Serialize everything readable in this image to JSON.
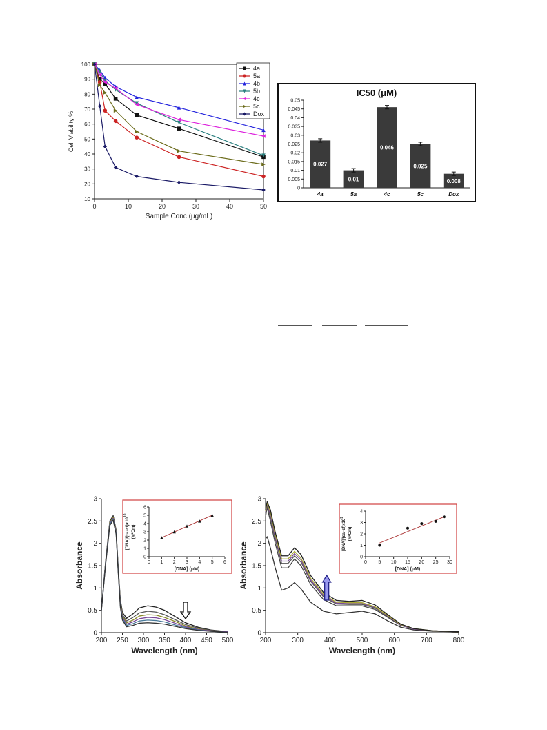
{
  "chart_data": [
    {
      "type": "line",
      "xlabel": "Sample Conc (μg/mL)",
      "ylabel": "Cell Viability %",
      "xlim": [
        0,
        50
      ],
      "ylim": [
        10,
        100
      ],
      "x_ticks": [
        "0",
        "10",
        "20",
        "30",
        "40",
        "50"
      ],
      "y_ticks": [
        "10",
        "20",
        "30",
        "40",
        "50",
        "60",
        "70",
        "80",
        "90",
        "100"
      ],
      "legend_position": "top-right",
      "x": [
        0,
        1.56,
        3.125,
        6.25,
        12.5,
        25,
        50
      ],
      "series": [
        {
          "name": "4a",
          "color": "#111111",
          "marker": "square",
          "values": [
            100,
            90,
            87,
            77,
            66,
            57,
            38
          ]
        },
        {
          "name": "5a",
          "color": "#cc2222",
          "marker": "circle",
          "values": [
            100,
            88,
            69,
            62,
            51,
            38,
            25
          ]
        },
        {
          "name": "4b",
          "color": "#2222dd",
          "marker": "triangle-up",
          "values": [
            100,
            96,
            91,
            85,
            78,
            71,
            56
          ]
        },
        {
          "name": "5b",
          "color": "#2a7f7f",
          "marker": "triangle-down",
          "values": [
            100,
            95,
            89,
            83,
            74,
            61,
            39
          ]
        },
        {
          "name": "4c",
          "color": "#dd22dd",
          "marker": "triangle-left",
          "values": [
            100,
            93,
            88,
            84,
            73,
            63,
            52
          ]
        },
        {
          "name": "5c",
          "color": "#6b6b1a",
          "marker": "triangle-right",
          "values": [
            100,
            86,
            81,
            69,
            55,
            42,
            33
          ]
        },
        {
          "name": "Dox",
          "color": "#1a1a66",
          "marker": "diamond",
          "values": [
            100,
            72,
            45,
            31,
            25,
            21,
            16
          ]
        }
      ]
    },
    {
      "type": "bar",
      "title": "IC50 (μM)",
      "categories": [
        "4a",
        "5a",
        "4c",
        "5c",
        "Dox"
      ],
      "values": [
        0.027,
        0.01,
        0.046,
        0.025,
        0.008
      ],
      "value_labels": [
        "0.027",
        "0.01",
        "0.046",
        "0.025",
        "0.008"
      ],
      "errors": [
        0.001,
        0.001,
        0.001,
        0.001,
        0.001
      ],
      "ylim": [
        0,
        0.05
      ],
      "y_ticks": [
        "0",
        "0.005",
        "0.01",
        "0.015",
        "0.02",
        "0.025",
        "0.03",
        "0.035",
        "0.04",
        "0.045",
        "0.05"
      ],
      "bar_color": "#3a3a3a",
      "grid": false
    },
    {
      "type": "line",
      "xlabel": "Wavelength (nm)",
      "ylabel": "Absorbance",
      "xlim": [
        200,
        500
      ],
      "ylim": [
        0,
        3
      ],
      "x_ticks": [
        "200",
        "250",
        "300",
        "350",
        "400",
        "450",
        "500"
      ],
      "y_ticks": [
        "0",
        "0.5",
        "1",
        "1.5",
        "2",
        "2.5",
        "3"
      ],
      "x": [
        200,
        210,
        220,
        228,
        235,
        240,
        245,
        250,
        260,
        275,
        290,
        310,
        330,
        350,
        375,
        400,
        430,
        460,
        500
      ],
      "series": [
        {
          "color": "#222222",
          "values": [
            0.5,
            1.6,
            2.5,
            2.62,
            2.3,
            1.45,
            0.75,
            0.45,
            0.32,
            0.42,
            0.55,
            0.6,
            0.57,
            0.5,
            0.36,
            0.22,
            0.12,
            0.06,
            0.02
          ]
        },
        {
          "color": "#555555",
          "values": [
            0.5,
            1.58,
            2.48,
            2.6,
            2.28,
            1.42,
            0.7,
            0.4,
            0.26,
            0.34,
            0.44,
            0.48,
            0.46,
            0.4,
            0.29,
            0.18,
            0.1,
            0.05,
            0.02
          ]
        },
        {
          "color": "#8a8a2a",
          "values": [
            0.5,
            1.56,
            2.46,
            2.58,
            2.26,
            1.4,
            0.66,
            0.37,
            0.22,
            0.28,
            0.37,
            0.4,
            0.39,
            0.34,
            0.25,
            0.15,
            0.08,
            0.04,
            0.02
          ]
        },
        {
          "color": "#7a4a9a",
          "values": [
            0.5,
            1.55,
            2.44,
            2.56,
            2.24,
            1.38,
            0.63,
            0.34,
            0.19,
            0.24,
            0.31,
            0.34,
            0.33,
            0.29,
            0.21,
            0.13,
            0.07,
            0.04,
            0.02
          ]
        },
        {
          "color": "#4a7a9a",
          "values": [
            0.5,
            1.54,
            2.42,
            2.54,
            2.22,
            1.36,
            0.6,
            0.31,
            0.16,
            0.2,
            0.26,
            0.28,
            0.27,
            0.24,
            0.17,
            0.11,
            0.06,
            0.03,
            0.01
          ]
        },
        {
          "color": "#333333",
          "values": [
            0.5,
            1.52,
            2.4,
            2.52,
            2.2,
            1.34,
            0.57,
            0.28,
            0.13,
            0.16,
            0.21,
            0.22,
            0.21,
            0.19,
            0.14,
            0.09,
            0.05,
            0.03,
            0.01
          ]
        }
      ],
      "arrow": {
        "x": 400,
        "direction": "down"
      },
      "inset": {
        "type": "scatter",
        "xlabel": "[DNA]  (μM)",
        "ylabel_line1": "[DNA]/(εa−εf)x10",
        "ylabel_exp": "10",
        "ylabel_line2": "(M²Cm)",
        "xlim": [
          0,
          6
        ],
        "ylim": [
          0,
          6
        ],
        "x_ticks": [
          "0",
          "1",
          "2",
          "3",
          "4",
          "5",
          "6"
        ],
        "y_ticks": [
          "0",
          "1",
          "2",
          "3",
          "4",
          "5",
          "6"
        ],
        "x": [
          1,
          2,
          3,
          4,
          5
        ],
        "y": [
          2.3,
          3.0,
          3.7,
          4.3,
          5.0
        ],
        "fit": [
          [
            1,
            2.3
          ],
          [
            5,
            5.0
          ]
        ]
      }
    },
    {
      "type": "line",
      "xlabel": "Wavelength (nm)",
      "ylabel": "Absorbance",
      "xlim": [
        200,
        800
      ],
      "ylim": [
        0,
        3
      ],
      "x_ticks": [
        "200",
        "300",
        "400",
        "500",
        "600",
        "700",
        "800"
      ],
      "y_ticks": [
        "0",
        "0.5",
        "1",
        "1.5",
        "2",
        "2.5",
        "3"
      ],
      "x": [
        200,
        205,
        215,
        230,
        250,
        270,
        290,
        310,
        340,
        380,
        420,
        460,
        500,
        540,
        580,
        620,
        660,
        720,
        800
      ],
      "series": [
        {
          "color": "#333333",
          "values": [
            2.1,
            2.15,
            1.9,
            1.45,
            0.95,
            1.0,
            1.12,
            0.98,
            0.68,
            0.48,
            0.42,
            0.45,
            0.48,
            0.42,
            0.26,
            0.12,
            0.06,
            0.03,
            0.02
          ]
        },
        {
          "color": "#444444",
          "values": [
            2.6,
            2.8,
            2.5,
            2.0,
            1.45,
            1.45,
            1.65,
            1.5,
            1.08,
            0.74,
            0.6,
            0.6,
            0.6,
            0.52,
            0.34,
            0.16,
            0.08,
            0.04,
            0.02
          ]
        },
        {
          "color": "#555555",
          "values": [
            2.65,
            2.85,
            2.6,
            2.1,
            1.55,
            1.55,
            1.72,
            1.58,
            1.15,
            0.8,
            0.64,
            0.63,
            0.63,
            0.55,
            0.36,
            0.17,
            0.08,
            0.04,
            0.02
          ]
        },
        {
          "color": "#7a4a9a",
          "values": [
            2.7,
            2.88,
            2.65,
            2.15,
            1.6,
            1.6,
            1.77,
            1.63,
            1.18,
            0.83,
            0.66,
            0.65,
            0.65,
            0.57,
            0.37,
            0.17,
            0.08,
            0.04,
            0.02
          ]
        },
        {
          "color": "#aaaa33",
          "values": [
            2.72,
            2.9,
            2.7,
            2.2,
            1.65,
            1.65,
            1.82,
            1.67,
            1.22,
            0.86,
            0.68,
            0.67,
            0.67,
            0.58,
            0.38,
            0.18,
            0.09,
            0.04,
            0.02
          ]
        },
        {
          "color": "#222222",
          "values": [
            2.75,
            2.93,
            2.75,
            2.25,
            1.72,
            1.72,
            1.9,
            1.75,
            1.28,
            0.9,
            0.72,
            0.7,
            0.72,
            0.62,
            0.4,
            0.19,
            0.09,
            0.04,
            0.02
          ]
        }
      ],
      "arrow": {
        "x": 390,
        "direction": "up"
      },
      "inset": {
        "type": "scatter",
        "xlabel": "[DNA]  (μM)",
        "ylabel_line1": "[DNA]/(εa−εf)x10",
        "ylabel_exp": "9",
        "ylabel_line2": "(M²Cm)",
        "xlim": [
          0,
          30
        ],
        "ylim": [
          0,
          4
        ],
        "x_ticks": [
          "0",
          "5",
          "10",
          "15",
          "20",
          "25",
          "30"
        ],
        "y_ticks": [
          "0",
          "1",
          "2",
          "3",
          "4"
        ],
        "x": [
          5,
          15,
          20,
          25,
          28
        ],
        "y": [
          1.0,
          2.5,
          2.9,
          3.1,
          3.5
        ],
        "fit": [
          [
            5,
            1.2
          ],
          [
            28,
            3.5
          ]
        ]
      }
    }
  ]
}
